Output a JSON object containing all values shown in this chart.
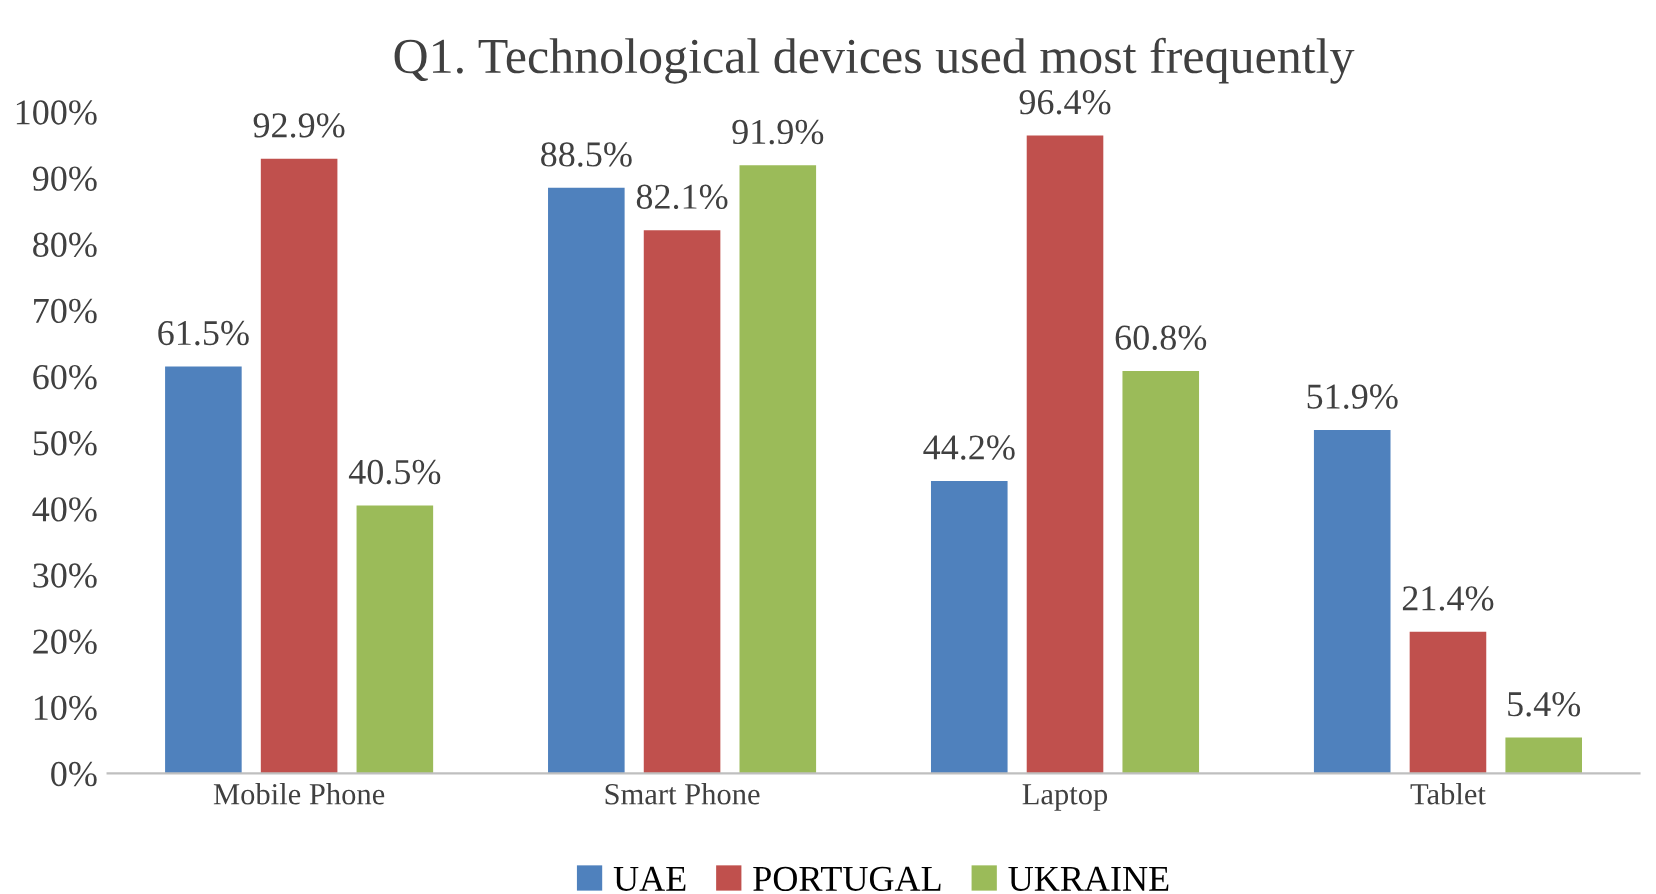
{
  "chart_data": {
    "type": "bar",
    "title": "Q1. Technological devices used most frequently",
    "categories": [
      "Mobile Phone",
      "Smart Phone",
      "Laptop",
      "Tablet"
    ],
    "series": [
      {
        "name": "UAE",
        "color": "#4f81bd",
        "values": [
          61.5,
          88.5,
          44.2,
          51.9
        ],
        "value_labels": [
          "61.5%",
          "88.5%",
          "44.2%",
          "51.9%"
        ]
      },
      {
        "name": "PORTUGAL",
        "color": "#c0504d",
        "values": [
          92.9,
          82.1,
          96.4,
          21.4
        ],
        "value_labels": [
          "92.9%",
          "82.1%",
          "96.4%",
          "21.4%"
        ]
      },
      {
        "name": "UKRAINE",
        "color": "#9bbb59",
        "values": [
          40.5,
          91.9,
          60.8,
          5.4
        ],
        "value_labels": [
          "40.5%",
          "91.9%",
          "60.8%",
          "5.4%"
        ]
      }
    ],
    "ylim": [
      0,
      100
    ],
    "yticks": [
      {
        "value": 0,
        "label": "0%"
      },
      {
        "value": 10,
        "label": "10%"
      },
      {
        "value": 20,
        "label": "20%"
      },
      {
        "value": 30,
        "label": "30%"
      },
      {
        "value": 40,
        "label": "40%"
      },
      {
        "value": 50,
        "label": "50%"
      },
      {
        "value": 60,
        "label": "60%"
      },
      {
        "value": 70,
        "label": "70%"
      },
      {
        "value": 80,
        "label": "80%"
      },
      {
        "value": 90,
        "label": "90%"
      },
      {
        "value": 100,
        "label": "100%"
      }
    ],
    "grid": false,
    "legend": "bottom"
  }
}
